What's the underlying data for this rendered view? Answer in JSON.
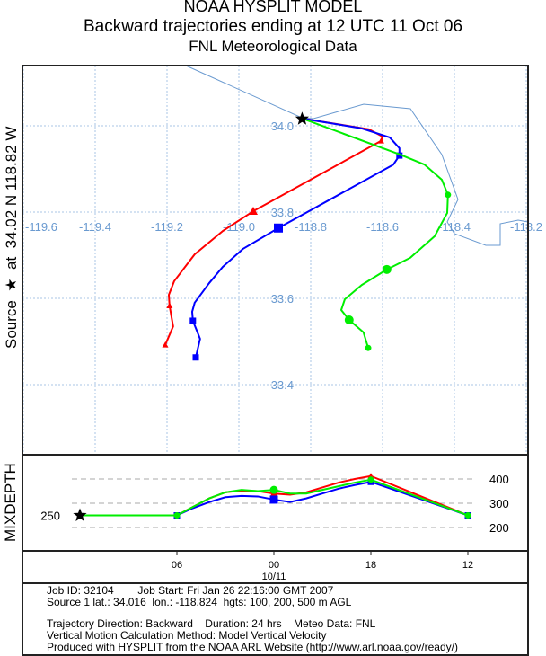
{
  "title": {
    "line1": "NOAA HYSPLIT MODEL",
    "line2": "Backward trajectories ending at 12 UTC 11 Oct 06",
    "line3": "FNL  Meteorological Data"
  },
  "side_label": {
    "source": "Source",
    "star": "★",
    "at": "at",
    "position": "34.02 N  118.82 W"
  },
  "map": {
    "lon_labels": [
      "-119.6",
      "-119.4",
      "-119.2",
      "-119.0",
      "-118.8",
      "-118.6",
      "-118.4",
      "-118.2"
    ],
    "lat_labels": [
      "34.0",
      "33.8",
      "33.6",
      "33.4"
    ],
    "source": {
      "lat": 34.016,
      "lon": -118.824
    },
    "trajectories": [
      {
        "name": "100 m",
        "color": "#ff0000",
        "marker": "triangle",
        "points": [
          [
            34.017,
            -118.824
          ],
          [
            33.992,
            -118.638
          ],
          [
            33.975,
            -118.6
          ],
          [
            33.965,
            -118.604
          ],
          [
            33.802,
            -118.96
          ],
          [
            33.756,
            -119.045
          ],
          [
            33.702,
            -119.123
          ],
          [
            33.64,
            -119.18
          ],
          [
            33.608,
            -119.195
          ],
          [
            33.583,
            -119.193
          ],
          [
            33.535,
            -119.183
          ],
          [
            33.492,
            -119.205
          ]
        ],
        "markers": [
          3,
          4,
          9,
          11
        ]
      },
      {
        "name": "200 m",
        "color": "#0000ff",
        "marker": "square",
        "points": [
          [
            34.017,
            -118.824
          ],
          [
            33.994,
            -118.658
          ],
          [
            33.973,
            -118.58
          ],
          [
            33.948,
            -118.553
          ],
          [
            33.931,
            -118.553
          ],
          [
            33.91,
            -118.57
          ],
          [
            33.763,
            -118.89
          ],
          [
            33.715,
            -118.988
          ],
          [
            33.673,
            -119.045
          ],
          [
            33.635,
            -119.083
          ],
          [
            33.59,
            -119.123
          ],
          [
            33.569,
            -119.13
          ],
          [
            33.548,
            -119.128
          ],
          [
            33.506,
            -119.108
          ],
          [
            33.463,
            -119.12
          ]
        ],
        "markers": [
          4,
          6,
          12,
          14
        ]
      },
      {
        "name": "500 m",
        "color": "#00ee00",
        "marker": "circle",
        "points": [
          [
            34.017,
            -118.824
          ],
          [
            33.933,
            -118.55
          ],
          [
            33.91,
            -118.483
          ],
          [
            33.875,
            -118.435
          ],
          [
            33.84,
            -118.418
          ],
          [
            33.798,
            -118.42
          ],
          [
            33.744,
            -118.455
          ],
          [
            33.694,
            -118.523
          ],
          [
            33.667,
            -118.588
          ],
          [
            33.631,
            -118.658
          ],
          [
            33.598,
            -118.705
          ],
          [
            33.573,
            -118.715
          ],
          [
            33.55,
            -118.693
          ],
          [
            33.521,
            -118.653
          ],
          [
            33.485,
            -118.64
          ]
        ],
        "markers": [
          4,
          8,
          12,
          14
        ]
      }
    ]
  },
  "mixdepth": {
    "ylabel": "MIXDEPTH",
    "start_label": "250",
    "y_ticks": [
      "400",
      "300",
      "200"
    ],
    "x_ticks": [
      "06",
      "00",
      "18",
      "12"
    ],
    "date_label": "10/11",
    "hours": [
      0,
      6,
      7,
      8,
      9,
      10,
      11,
      12,
      13,
      14,
      15,
      16,
      17,
      18,
      24
    ],
    "series": [
      {
        "color": "#ff0000",
        "values": [
          250,
          250,
          285,
          320,
          345,
          352,
          350,
          340,
          335,
          345,
          365,
          385,
          400,
          412,
          250
        ]
      },
      {
        "color": "#0000ff",
        "values": [
          250,
          250,
          280,
          305,
          325,
          330,
          328,
          315,
          305,
          320,
          340,
          360,
          375,
          388,
          250
        ]
      },
      {
        "color": "#00ee00",
        "values": [
          250,
          250,
          285,
          320,
          345,
          355,
          350,
          355,
          340,
          340,
          355,
          370,
          385,
          397,
          250
        ]
      }
    ]
  },
  "info": {
    "line1": "Job ID: 32104        Job Start: Fri Jan 26 22:16:00 GMT 2007",
    "line2": "Source 1 lat.: 34.016  lon.: -118.824  hgts: 100, 200, 500 m AGL",
    "line3": "Trajectory Direction: Backward    Duration: 24 hrs    Meteo Data: FNL",
    "line4": "Vertical Motion Calculation Method: Model Vertical Velocity",
    "line5": "Produced with HYSPLIT from the NOAA ARL Website (http://www.arl.noaa.gov/ready/)"
  }
}
